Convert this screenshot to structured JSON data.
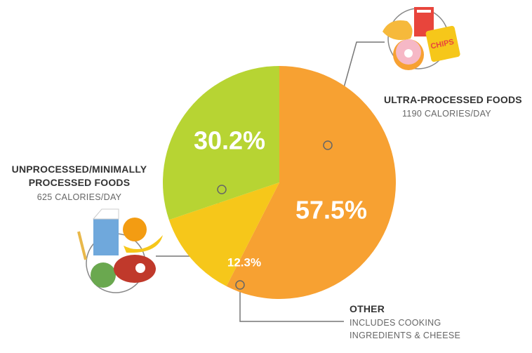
{
  "chart_data": {
    "type": "pie",
    "categories": [
      "ULTRA-PROCESSED FOODS",
      "OTHER",
      "UNPROCESSED/MINIMALLY PROCESSED FOODS"
    ],
    "descriptions": [
      "1190 CALORIES/DAY",
      "INCLUDES COOKING INGREDIENTS & CHEESE",
      "625 CALORIES/DAY"
    ],
    "values": [
      57.5,
      12.3,
      30.2
    ],
    "value_labels": [
      "57.5%",
      "12.3%",
      "30.2%"
    ],
    "colors": [
      "#f7a132",
      "#f6c71a",
      "#b7d433"
    ]
  }
}
